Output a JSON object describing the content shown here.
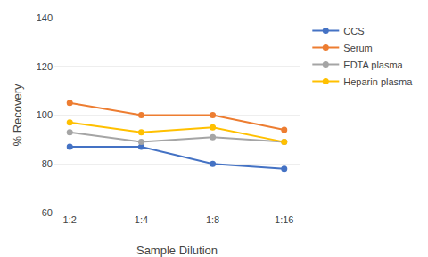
{
  "chart_data": {
    "type": "line",
    "categories": [
      "1:2",
      "1:4",
      "1:8",
      "1:16"
    ],
    "series": [
      {
        "name": "CCS",
        "color": "#4472C4",
        "marker": "circle",
        "values": [
          87,
          87,
          80,
          78
        ]
      },
      {
        "name": "Serum",
        "color": "#ED7D31",
        "marker": "circle",
        "values": [
          105,
          100,
          100,
          94
        ]
      },
      {
        "name": "EDTA plasma",
        "color": "#A5A5A5",
        "marker": "circle",
        "values": [
          93,
          89,
          91,
          89
        ]
      },
      {
        "name": "Heparin plasma",
        "color": "#FFC000",
        "marker": "circle",
        "values": [
          97,
          93,
          95,
          89
        ]
      }
    ],
    "xlabel": "Sample Dilution",
    "ylabel": "% Recovery",
    "ylim": [
      60,
      140
    ],
    "yticks": [
      60,
      80,
      100,
      120,
      140
    ],
    "grid": true,
    "legend": "right"
  }
}
